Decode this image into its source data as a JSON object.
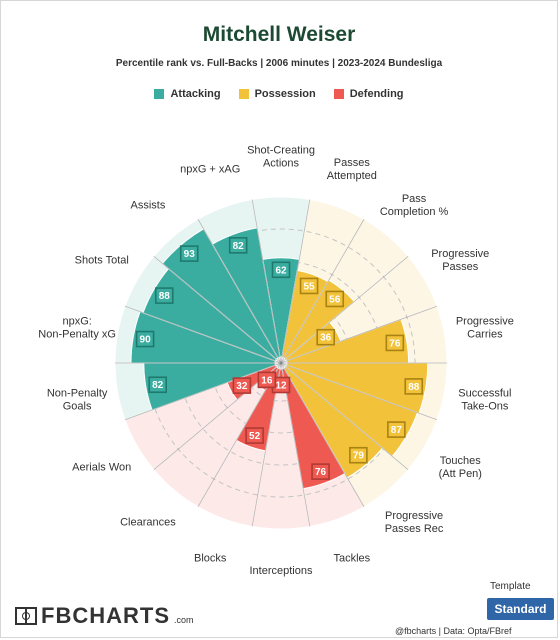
{
  "header": {
    "title": "Mitchell Weiser",
    "subtitle": "Percentile rank vs. Full-Backs | 2006 minutes | 2023-2024 Bundesliga"
  },
  "legend": [
    {
      "label": "Attacking",
      "color": "#3aada0"
    },
    {
      "label": "Possession",
      "color": "#f2c23a"
    },
    {
      "label": "Defending",
      "color": "#ee5a52"
    }
  ],
  "chart_data": {
    "type": "radar-bar",
    "title": "Mitchell Weiser",
    "subtitle": "Percentile rank vs. Full-Backs | 2006 minutes | 2023-2024 Bundesliga",
    "range": [
      0,
      100
    ],
    "groups": {
      "Attacking": {
        "fill": "#3aada0",
        "background": "#e6f5f2",
        "border": "#1f7a6e"
      },
      "Possession": {
        "fill": "#f2c23a",
        "background": "#fdf6e4",
        "border": "#a88212"
      },
      "Defending": {
        "fill": "#ee5a52",
        "background": "#fde9e8",
        "border": "#b03a33"
      }
    },
    "categories": [
      {
        "label": "Shot-Creating Actions",
        "value": 62,
        "group": "Attacking"
      },
      {
        "label": "Passes Attempted",
        "value": 55,
        "group": "Possession"
      },
      {
        "label": "Pass Completion %",
        "value": 56,
        "group": "Possession"
      },
      {
        "label": "Progressive Passes",
        "value": 36,
        "group": "Possession"
      },
      {
        "label": "Progressive Carries",
        "value": 76,
        "group": "Possession"
      },
      {
        "label": "Successful Take-Ons",
        "value": 88,
        "group": "Possession"
      },
      {
        "label": "Touches (Att Pen)",
        "value": 87,
        "group": "Possession"
      },
      {
        "label": "Progressive Passes Rec",
        "value": 79,
        "group": "Possession"
      },
      {
        "label": "Tackles",
        "value": 76,
        "group": "Defending"
      },
      {
        "label": "Interceptions",
        "value": 12,
        "group": "Defending"
      },
      {
        "label": "Blocks",
        "value": 52,
        "group": "Defending"
      },
      {
        "label": "Clearances",
        "value": 16,
        "group": "Defending"
      },
      {
        "label": "Aerials Won",
        "value": 32,
        "group": "Defending"
      },
      {
        "label": "Non-Penalty Goals",
        "value": 82,
        "group": "Attacking"
      },
      {
        "label": "npxG: Non-Penalty xG",
        "value": 90,
        "group": "Attacking"
      },
      {
        "label": "Shots Total",
        "value": 88,
        "group": "Attacking"
      },
      {
        "label": "Assists",
        "value": 93,
        "group": "Attacking"
      },
      {
        "label": "npxG + xAG",
        "value": 82,
        "group": "Attacking"
      }
    ]
  },
  "footer": {
    "template_label": "Template",
    "standard_button": "Standard",
    "logo_text": "FBCHARTS",
    "logo_suffix": ".com",
    "credit": "@fbcharts  |  Data: Opta/FBref"
  }
}
